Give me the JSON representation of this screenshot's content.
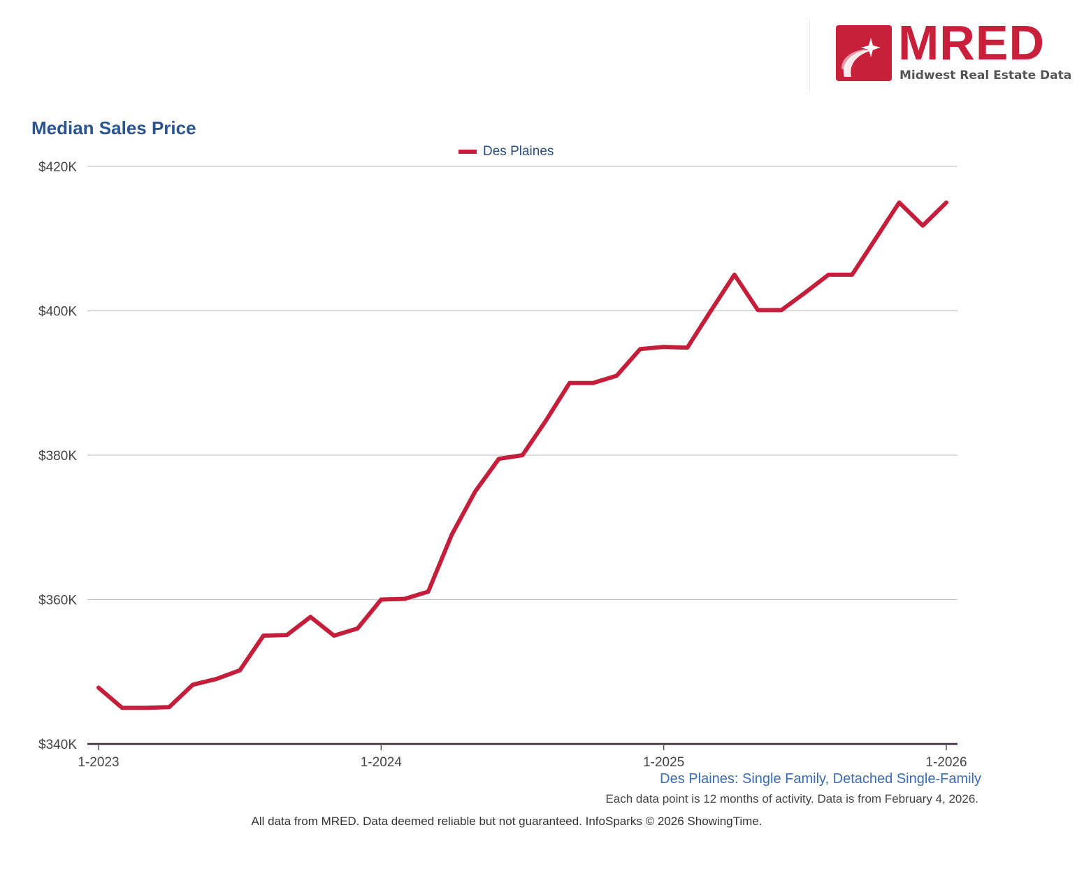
{
  "colors": {
    "series": "#c41e3a",
    "title": "#2a5591",
    "gridline": "#c8c8c8",
    "axis": "#3a2a3a"
  },
  "logo": {
    "wordmark": "MRED",
    "tagline": "Midwest Real Estate Data",
    "badge_icon": "star-swoosh-icon"
  },
  "chart_data": {
    "type": "line",
    "title": "Median Sales Price",
    "xlabel": "",
    "ylabel": "",
    "x": [
      "1-2023",
      "2-2023",
      "3-2023",
      "4-2023",
      "5-2023",
      "6-2023",
      "7-2023",
      "8-2023",
      "9-2023",
      "10-2023",
      "11-2023",
      "12-2023",
      "1-2024",
      "2-2024",
      "3-2024",
      "4-2024",
      "5-2024",
      "6-2024",
      "7-2024",
      "8-2024",
      "9-2024",
      "10-2024",
      "11-2024",
      "12-2024",
      "1-2025",
      "2-2025",
      "3-2025",
      "4-2025",
      "5-2025",
      "6-2025",
      "7-2025",
      "8-2025",
      "9-2025",
      "10-2025",
      "11-2025",
      "12-2025",
      "1-2026"
    ],
    "series": [
      {
        "name": "Des Plaines",
        "values": [
          347800,
          345000,
          345000,
          345100,
          348200,
          349000,
          350200,
          355000,
          355100,
          357600,
          355000,
          356000,
          360000,
          360100,
          361100,
          369000,
          375000,
          379500,
          380000,
          384800,
          390000,
          390000,
          391000,
          394700,
          395000,
          394900,
          400000,
          405000,
          400100,
          400100,
          402500,
          405000,
          405000,
          410000,
          415000,
          411800,
          415000
        ]
      }
    ],
    "ylim": [
      340000,
      420000
    ],
    "yticks": [
      340000,
      360000,
      380000,
      400000,
      420000
    ],
    "ytick_labels": [
      "$340K",
      "$360K",
      "$380K",
      "$400K",
      "$420K"
    ],
    "xtick_labels": [
      "1-2023",
      "1-2024",
      "1-2025",
      "1-2026"
    ],
    "xtick_index": [
      0,
      12,
      24,
      36
    ],
    "grid": true,
    "legend_position": "top-center"
  },
  "footer": {
    "series_note": "Des Plaines: Single Family, Detached Single-Family",
    "info_note": "Each data point is 12 months of activity. Data is from February 4, 2026.",
    "source_note": "All data from MRED. Data deemed reliable but not guaranteed. InfoSparks © 2026 ShowingTime."
  }
}
